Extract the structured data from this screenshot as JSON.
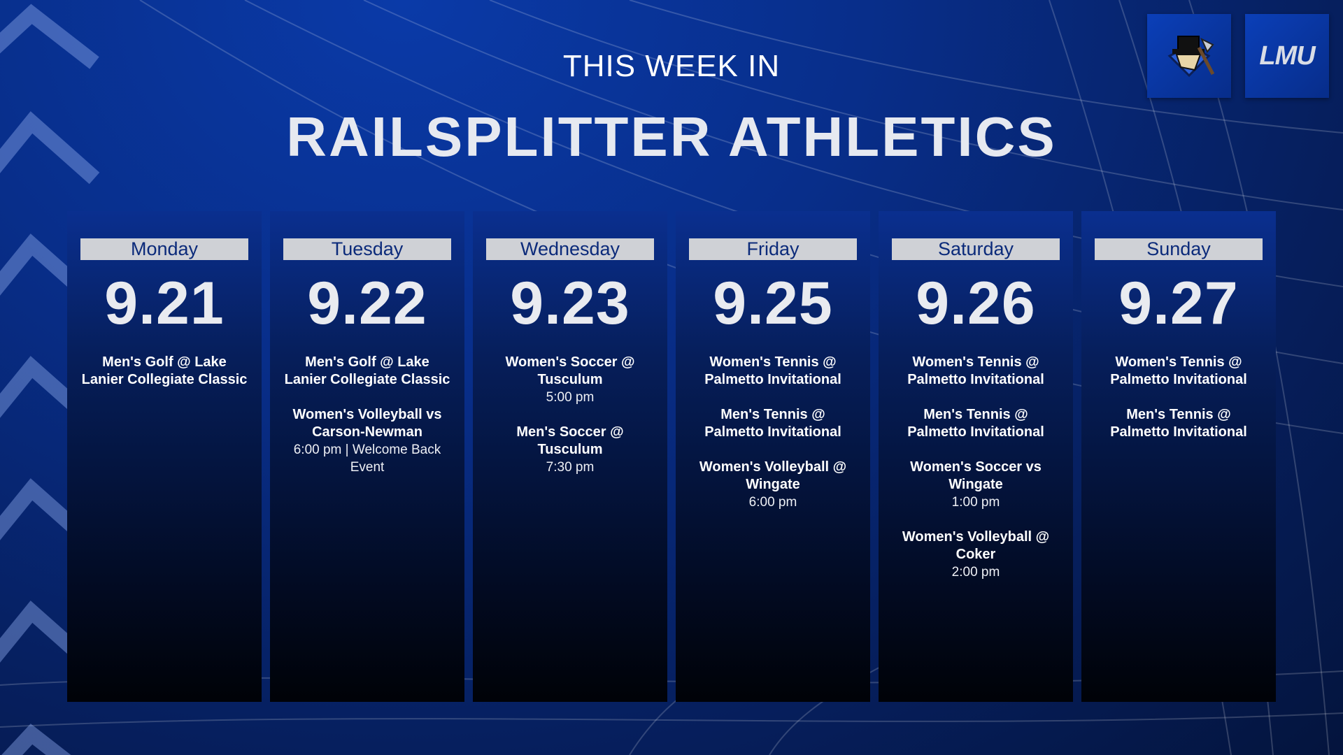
{
  "header": {
    "subtitle": "THIS WEEK IN",
    "title": "RAILSPLITTER ATHLETICS"
  },
  "logos": {
    "mascot_icon": "railsplitter-mascot-icon",
    "lmu_text": "LMU"
  },
  "colors": {
    "background": "#082e8a",
    "day_label_bg": "#cfd1d6",
    "day_label_text": "#0b2a7a"
  },
  "days": [
    {
      "label": "Monday",
      "date": "9.21",
      "events": [
        {
          "name": "Men's Golf @ Lake Lanier Collegiate Classic",
          "detail": ""
        }
      ]
    },
    {
      "label": "Tuesday",
      "date": "9.22",
      "events": [
        {
          "name": "Men's Golf @ Lake Lanier Collegiate Classic",
          "detail": ""
        },
        {
          "name": "Women's Volleyball vs Carson-Newman",
          "detail": "6:00 pm | Welcome Back Event"
        }
      ]
    },
    {
      "label": "Wednesday",
      "date": "9.23",
      "events": [
        {
          "name": "Women's Soccer @ Tusculum",
          "detail": "5:00 pm"
        },
        {
          "name": "Men's Soccer @ Tusculum",
          "detail": "7:30 pm"
        }
      ]
    },
    {
      "label": "Friday",
      "date": "9.25",
      "events": [
        {
          "name": "Women's Tennis @ Palmetto Invitational",
          "detail": ""
        },
        {
          "name": "Men's Tennis @ Palmetto Invitational",
          "detail": ""
        },
        {
          "name": "Women's Volleyball @ Wingate",
          "detail": "6:00 pm"
        }
      ]
    },
    {
      "label": "Saturday",
      "date": "9.26",
      "events": [
        {
          "name": "Women's Tennis @ Palmetto Invitational",
          "detail": ""
        },
        {
          "name": "Men's Tennis @ Palmetto Invitational",
          "detail": ""
        },
        {
          "name": "Women's Soccer vs Wingate",
          "detail": "1:00 pm"
        },
        {
          "name": "Women's Volleyball @ Coker",
          "detail": "2:00 pm"
        }
      ]
    },
    {
      "label": "Sunday",
      "date": "9.27",
      "events": [
        {
          "name": "Women's Tennis @ Palmetto Invitational",
          "detail": ""
        },
        {
          "name": "Men's Tennis @ Palmetto Invitational",
          "detail": ""
        }
      ]
    }
  ]
}
